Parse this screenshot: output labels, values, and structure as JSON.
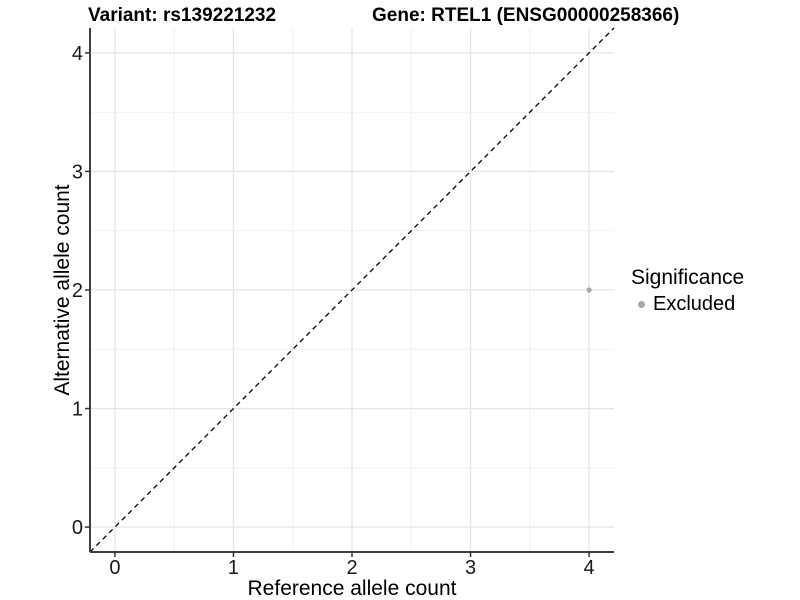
{
  "chart_data": {
    "type": "scatter",
    "title_left": "Variant: rs139221232",
    "title_right": "Gene: RTEL1 (ENSG00000258366)",
    "xlabel": "Reference allele count",
    "ylabel": "Alternative allele count",
    "x_ticks": [
      0,
      1,
      2,
      3,
      4
    ],
    "y_ticks": [
      0,
      1,
      2,
      3,
      4
    ],
    "x_minor_ticks": [
      0.5,
      1.5,
      2.5,
      3.5
    ],
    "y_minor_ticks": [
      0.5,
      1.5,
      2.5,
      3.5
    ],
    "xlim": [
      -0.21,
      4.21
    ],
    "ylim": [
      -0.21,
      4.21
    ],
    "grid": "major+minor",
    "reference_line": {
      "kind": "identity",
      "slope": 1,
      "intercept": 0,
      "style": "dashed",
      "color": "#000000"
    },
    "series": [
      {
        "name": "Excluded",
        "color": "#a8a8a8",
        "points": [
          {
            "x": 4,
            "y": 2
          }
        ]
      }
    ],
    "legend": {
      "title": "Significance",
      "position": "right",
      "items": [
        {
          "label": "Excluded",
          "color": "#a8a8a8"
        }
      ]
    },
    "colors": {
      "grid_major": "#e5e5e5",
      "grid_minor": "#efefef",
      "axis_line": "#3f3f3f",
      "tick_mark": "#333333",
      "tick_text": "#1a1a1a"
    }
  }
}
